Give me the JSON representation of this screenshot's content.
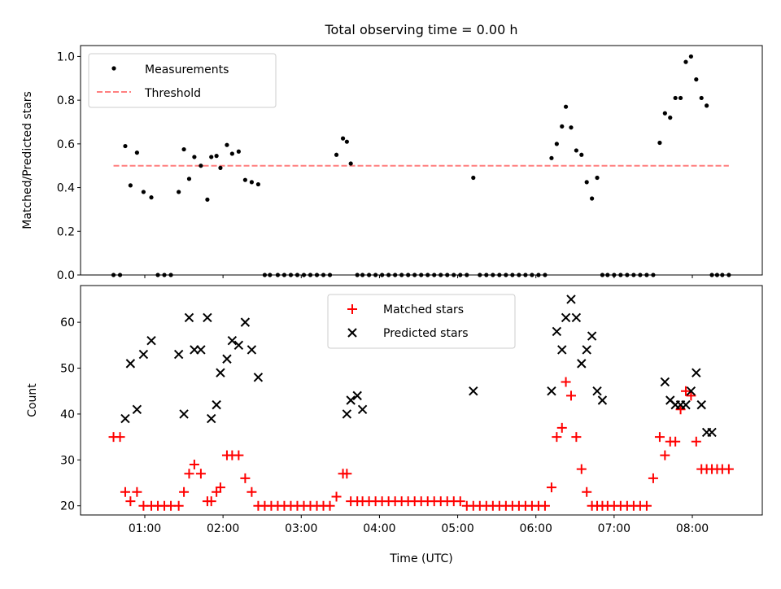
{
  "title": "Total observing time = 0.00 h",
  "colors": {
    "measurements": "#000000",
    "threshold": "#ff7f7f",
    "matched": "#ff0000",
    "predicted": "#000000"
  },
  "chart_data": [
    {
      "type": "scatter",
      "panel": "top",
      "title": "Total observing time = 0.00 h",
      "xlabel": "",
      "ylabel": "Matched/Predicted stars",
      "ylim": [
        0,
        1.05
      ],
      "yticks": [
        "0.0",
        "0.2",
        "0.4",
        "0.6",
        "0.8",
        "1.0"
      ],
      "legend_position": "upper-left",
      "threshold": {
        "name": "Threshold",
        "value": 0.5,
        "x_range": [
          "00:36",
          "08:28"
        ],
        "style": "dashed"
      },
      "series": [
        {
          "name": "Measurements",
          "marker": "dot",
          "x": [
            "00:36",
            "00:41",
            "00:45",
            "00:49",
            "00:54",
            "00:59",
            "01:05",
            "01:10",
            "01:15",
            "01:20",
            "01:26",
            "01:30",
            "01:34",
            "01:38",
            "01:43",
            "01:48",
            "01:51",
            "01:55",
            "01:58",
            "02:03",
            "02:07",
            "02:12",
            "02:17",
            "02:22",
            "02:27",
            "02:32",
            "02:36",
            "02:42",
            "02:47",
            "02:52",
            "02:57",
            "03:02",
            "03:07",
            "03:12",
            "03:17",
            "03:22",
            "03:27",
            "03:32",
            "03:35",
            "03:38",
            "03:43",
            "03:47",
            "03:52",
            "03:57",
            "04:02",
            "04:07",
            "04:12",
            "04:17",
            "04:22",
            "04:27",
            "04:32",
            "04:37",
            "04:42",
            "04:47",
            "04:52",
            "04:57",
            "05:02",
            "05:07",
            "05:12",
            "05:17",
            "05:22",
            "05:27",
            "05:32",
            "05:37",
            "05:42",
            "05:47",
            "05:52",
            "05:57",
            "06:02",
            "06:07",
            "06:12",
            "06:16",
            "06:20",
            "06:23",
            "06:27",
            "06:31",
            "06:35",
            "06:39",
            "06:43",
            "06:47",
            "06:51",
            "06:55",
            "07:00",
            "07:05",
            "07:10",
            "07:15",
            "07:20",
            "07:25",
            "07:30",
            "07:35",
            "07:39",
            "07:43",
            "07:47",
            "07:51",
            "07:55",
            "07:59",
            "08:03",
            "08:07",
            "08:11",
            "08:15",
            "08:19",
            "08:23",
            "08:28"
          ],
          "y": [
            0,
            0,
            0.59,
            0.41,
            0.56,
            0.38,
            0.355,
            0,
            0,
            0,
            0.38,
            0.575,
            0.44,
            0.54,
            0.5,
            0.345,
            0.54,
            0.545,
            0.49,
            0.595,
            0.555,
            0.565,
            0.435,
            0.425,
            0.415,
            0,
            0,
            0,
            0,
            0,
            0,
            0,
            0,
            0,
            0,
            0,
            0.55,
            0.625,
            0.61,
            0.51,
            0,
            0,
            0,
            0,
            0,
            0,
            0,
            0,
            0,
            0,
            0,
            0,
            0,
            0,
            0,
            0,
            0,
            0,
            0.445,
            0,
            0,
            0,
            0,
            0,
            0,
            0,
            0,
            0,
            0,
            0,
            0.535,
            0.6,
            0.68,
            0.77,
            0.675,
            0.57,
            0.55,
            0.425,
            0.35,
            0.445,
            0,
            0,
            0,
            0,
            0,
            0,
            0,
            0,
            0,
            0.605,
            0.74,
            0.72,
            0.81,
            0.81,
            0.975,
            1.0,
            0.895,
            0.81,
            0.775,
            0,
            0,
            0,
            0
          ]
        }
      ]
    },
    {
      "type": "scatter",
      "panel": "bottom",
      "xlabel": "Time (UTC)",
      "ylabel": "Count",
      "ylim": [
        18,
        68
      ],
      "yticks": [
        "20",
        "30",
        "40",
        "50",
        "60"
      ],
      "xticks": [
        "01:00",
        "02:00",
        "03:00",
        "04:00",
        "05:00",
        "06:00",
        "07:00",
        "08:00"
      ],
      "legend_position": "upper-center",
      "series": [
        {
          "name": "Matched stars",
          "marker": "plus",
          "x": [
            "00:36",
            "00:41",
            "00:45",
            "00:49",
            "00:54",
            "00:59",
            "01:05",
            "01:10",
            "01:15",
            "01:20",
            "01:26",
            "01:30",
            "01:34",
            "01:38",
            "01:43",
            "01:48",
            "01:51",
            "01:55",
            "01:58",
            "02:03",
            "02:07",
            "02:12",
            "02:17",
            "02:22",
            "02:27",
            "02:32",
            "02:37",
            "02:42",
            "02:47",
            "02:52",
            "02:57",
            "03:02",
            "03:07",
            "03:12",
            "03:17",
            "03:22",
            "03:27",
            "03:32",
            "03:35",
            "03:38",
            "03:43",
            "03:47",
            "03:52",
            "03:57",
            "04:02",
            "04:07",
            "04:12",
            "04:17",
            "04:22",
            "04:27",
            "04:32",
            "04:37",
            "04:42",
            "04:47",
            "04:52",
            "04:57",
            "05:02",
            "05:07",
            "05:12",
            "05:17",
            "05:22",
            "05:27",
            "05:32",
            "05:37",
            "05:42",
            "05:47",
            "05:52",
            "05:57",
            "06:02",
            "06:07",
            "06:12",
            "06:16",
            "06:20",
            "06:23",
            "06:27",
            "06:31",
            "06:35",
            "06:39",
            "06:43",
            "06:47",
            "06:51",
            "06:55",
            "07:00",
            "07:05",
            "07:10",
            "07:15",
            "07:20",
            "07:25",
            "07:30",
            "07:35",
            "07:39",
            "07:43",
            "07:47",
            "07:51",
            "07:55",
            "07:59",
            "08:03",
            "08:07",
            "08:11",
            "08:15",
            "08:19",
            "08:23",
            "08:28"
          ],
          "y": [
            35,
            35,
            23,
            21,
            23,
            20,
            20,
            20,
            20,
            20,
            20,
            23,
            27,
            29,
            27,
            21,
            21,
            23,
            24,
            31,
            31,
            31,
            26,
            23,
            20,
            20,
            20,
            20,
            20,
            20,
            20,
            20,
            20,
            20,
            20,
            20,
            22,
            27,
            27,
            21,
            21,
            21,
            21,
            21,
            21,
            21,
            21,
            21,
            21,
            21,
            21,
            21,
            21,
            21,
            21,
            21,
            21,
            20,
            20,
            20,
            20,
            20,
            20,
            20,
            20,
            20,
            20,
            20,
            20,
            20,
            24,
            35,
            37,
            47,
            44,
            35,
            28,
            23,
            20,
            20,
            20,
            20,
            20,
            20,
            20,
            20,
            20,
            20,
            26,
            35,
            31,
            34,
            34,
            41,
            45,
            44,
            34,
            28,
            28,
            28,
            28,
            28,
            28
          ]
        },
        {
          "name": "Predicted stars",
          "marker": "x",
          "x": [
            "00:45",
            "00:49",
            "00:54",
            "00:59",
            "01:05",
            "01:26",
            "01:30",
            "01:34",
            "01:38",
            "01:43",
            "01:48",
            "01:51",
            "01:55",
            "01:58",
            "02:03",
            "02:07",
            "02:12",
            "02:17",
            "02:22",
            "02:27",
            "03:35",
            "03:38",
            "03:43",
            "03:47",
            "05:12",
            "06:12",
            "06:16",
            "06:20",
            "06:23",
            "06:27",
            "06:31",
            "06:35",
            "06:39",
            "06:43",
            "06:47",
            "06:51",
            "07:39",
            "07:43",
            "07:47",
            "07:51",
            "07:55",
            "07:59",
            "08:03",
            "08:07",
            "08:11",
            "08:15"
          ],
          "y": [
            39,
            51,
            41,
            53,
            56,
            53,
            40,
            61,
            54,
            54,
            61,
            39,
            42,
            49,
            52,
            56,
            55,
            60,
            54,
            48,
            40,
            43,
            44,
            41,
            45,
            45,
            58,
            54,
            61,
            65,
            61,
            51,
            54,
            57,
            45,
            43,
            47,
            43,
            42,
            42,
            42,
            45,
            49,
            42,
            36,
            36
          ]
        }
      ]
    }
  ]
}
